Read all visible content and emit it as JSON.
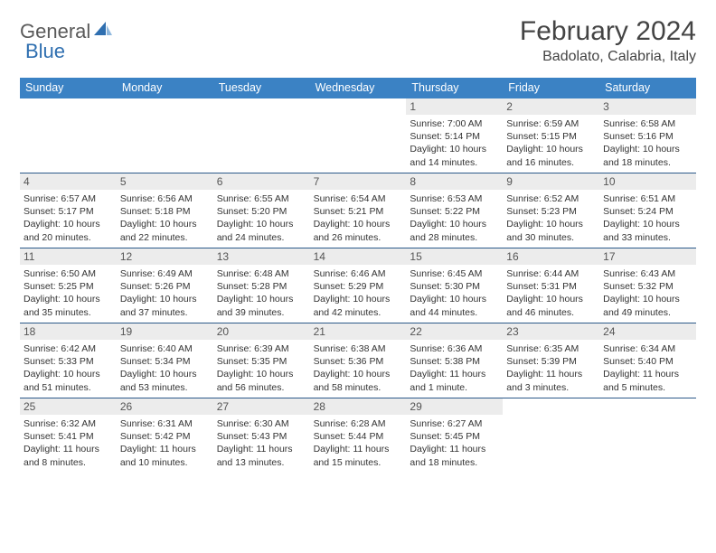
{
  "logo": {
    "text1": "General",
    "text2": "Blue"
  },
  "title": "February 2024",
  "location": "Badolato, Calabria, Italy",
  "colors": {
    "header_bg": "#3b82c4",
    "header_text": "#ffffff",
    "daynum_bg": "#ececec",
    "border": "#2c5a8a",
    "logo_gray": "#5a5a5a",
    "logo_blue": "#2f6fb0"
  },
  "typography": {
    "title_fontsize": 30,
    "location_fontsize": 16,
    "dayheader_fontsize": 12.5,
    "cell_fontsize": 10.5
  },
  "day_names": [
    "Sunday",
    "Monday",
    "Tuesday",
    "Wednesday",
    "Thursday",
    "Friday",
    "Saturday"
  ],
  "weeks": [
    [
      {
        "n": "",
        "sr": "",
        "ss": "",
        "dl": ""
      },
      {
        "n": "",
        "sr": "",
        "ss": "",
        "dl": ""
      },
      {
        "n": "",
        "sr": "",
        "ss": "",
        "dl": ""
      },
      {
        "n": "",
        "sr": "",
        "ss": "",
        "dl": ""
      },
      {
        "n": "1",
        "sr": "Sunrise: 7:00 AM",
        "ss": "Sunset: 5:14 PM",
        "dl": "Daylight: 10 hours and 14 minutes."
      },
      {
        "n": "2",
        "sr": "Sunrise: 6:59 AM",
        "ss": "Sunset: 5:15 PM",
        "dl": "Daylight: 10 hours and 16 minutes."
      },
      {
        "n": "3",
        "sr": "Sunrise: 6:58 AM",
        "ss": "Sunset: 5:16 PM",
        "dl": "Daylight: 10 hours and 18 minutes."
      }
    ],
    [
      {
        "n": "4",
        "sr": "Sunrise: 6:57 AM",
        "ss": "Sunset: 5:17 PM",
        "dl": "Daylight: 10 hours and 20 minutes."
      },
      {
        "n": "5",
        "sr": "Sunrise: 6:56 AM",
        "ss": "Sunset: 5:18 PM",
        "dl": "Daylight: 10 hours and 22 minutes."
      },
      {
        "n": "6",
        "sr": "Sunrise: 6:55 AM",
        "ss": "Sunset: 5:20 PM",
        "dl": "Daylight: 10 hours and 24 minutes."
      },
      {
        "n": "7",
        "sr": "Sunrise: 6:54 AM",
        "ss": "Sunset: 5:21 PM",
        "dl": "Daylight: 10 hours and 26 minutes."
      },
      {
        "n": "8",
        "sr": "Sunrise: 6:53 AM",
        "ss": "Sunset: 5:22 PM",
        "dl": "Daylight: 10 hours and 28 minutes."
      },
      {
        "n": "9",
        "sr": "Sunrise: 6:52 AM",
        "ss": "Sunset: 5:23 PM",
        "dl": "Daylight: 10 hours and 30 minutes."
      },
      {
        "n": "10",
        "sr": "Sunrise: 6:51 AM",
        "ss": "Sunset: 5:24 PM",
        "dl": "Daylight: 10 hours and 33 minutes."
      }
    ],
    [
      {
        "n": "11",
        "sr": "Sunrise: 6:50 AM",
        "ss": "Sunset: 5:25 PM",
        "dl": "Daylight: 10 hours and 35 minutes."
      },
      {
        "n": "12",
        "sr": "Sunrise: 6:49 AM",
        "ss": "Sunset: 5:26 PM",
        "dl": "Daylight: 10 hours and 37 minutes."
      },
      {
        "n": "13",
        "sr": "Sunrise: 6:48 AM",
        "ss": "Sunset: 5:28 PM",
        "dl": "Daylight: 10 hours and 39 minutes."
      },
      {
        "n": "14",
        "sr": "Sunrise: 6:46 AM",
        "ss": "Sunset: 5:29 PM",
        "dl": "Daylight: 10 hours and 42 minutes."
      },
      {
        "n": "15",
        "sr": "Sunrise: 6:45 AM",
        "ss": "Sunset: 5:30 PM",
        "dl": "Daylight: 10 hours and 44 minutes."
      },
      {
        "n": "16",
        "sr": "Sunrise: 6:44 AM",
        "ss": "Sunset: 5:31 PM",
        "dl": "Daylight: 10 hours and 46 minutes."
      },
      {
        "n": "17",
        "sr": "Sunrise: 6:43 AM",
        "ss": "Sunset: 5:32 PM",
        "dl": "Daylight: 10 hours and 49 minutes."
      }
    ],
    [
      {
        "n": "18",
        "sr": "Sunrise: 6:42 AM",
        "ss": "Sunset: 5:33 PM",
        "dl": "Daylight: 10 hours and 51 minutes."
      },
      {
        "n": "19",
        "sr": "Sunrise: 6:40 AM",
        "ss": "Sunset: 5:34 PM",
        "dl": "Daylight: 10 hours and 53 minutes."
      },
      {
        "n": "20",
        "sr": "Sunrise: 6:39 AM",
        "ss": "Sunset: 5:35 PM",
        "dl": "Daylight: 10 hours and 56 minutes."
      },
      {
        "n": "21",
        "sr": "Sunrise: 6:38 AM",
        "ss": "Sunset: 5:36 PM",
        "dl": "Daylight: 10 hours and 58 minutes."
      },
      {
        "n": "22",
        "sr": "Sunrise: 6:36 AM",
        "ss": "Sunset: 5:38 PM",
        "dl": "Daylight: 11 hours and 1 minute."
      },
      {
        "n": "23",
        "sr": "Sunrise: 6:35 AM",
        "ss": "Sunset: 5:39 PM",
        "dl": "Daylight: 11 hours and 3 minutes."
      },
      {
        "n": "24",
        "sr": "Sunrise: 6:34 AM",
        "ss": "Sunset: 5:40 PM",
        "dl": "Daylight: 11 hours and 5 minutes."
      }
    ],
    [
      {
        "n": "25",
        "sr": "Sunrise: 6:32 AM",
        "ss": "Sunset: 5:41 PM",
        "dl": "Daylight: 11 hours and 8 minutes."
      },
      {
        "n": "26",
        "sr": "Sunrise: 6:31 AM",
        "ss": "Sunset: 5:42 PM",
        "dl": "Daylight: 11 hours and 10 minutes."
      },
      {
        "n": "27",
        "sr": "Sunrise: 6:30 AM",
        "ss": "Sunset: 5:43 PM",
        "dl": "Daylight: 11 hours and 13 minutes."
      },
      {
        "n": "28",
        "sr": "Sunrise: 6:28 AM",
        "ss": "Sunset: 5:44 PM",
        "dl": "Daylight: 11 hours and 15 minutes."
      },
      {
        "n": "29",
        "sr": "Sunrise: 6:27 AM",
        "ss": "Sunset: 5:45 PM",
        "dl": "Daylight: 11 hours and 18 minutes."
      },
      {
        "n": "",
        "sr": "",
        "ss": "",
        "dl": ""
      },
      {
        "n": "",
        "sr": "",
        "ss": "",
        "dl": ""
      }
    ]
  ]
}
